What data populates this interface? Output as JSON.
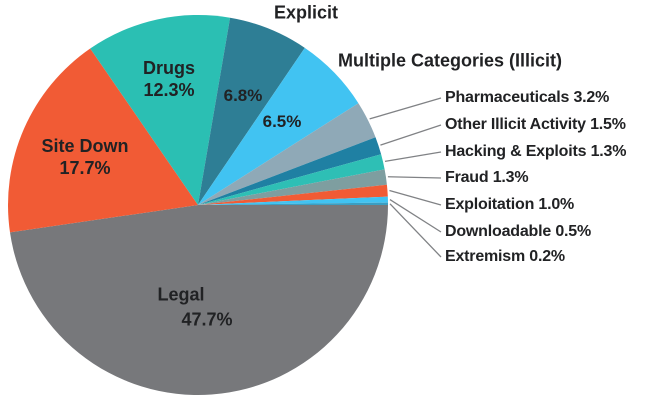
{
  "chart_data": {
    "type": "pie",
    "title": "",
    "direction": "clockwise",
    "start_angle_compass_deg": 90,
    "background": "#FFFFFF",
    "text_color": "#212224",
    "leader_line_color": "#808285",
    "slices": [
      {
        "name": "Legal",
        "value": 47.7,
        "pct_text": "47.7%",
        "color": "#77787B",
        "label_style": "inside"
      },
      {
        "name": "Site Down",
        "value": 17.7,
        "pct_text": "17.7%",
        "color": "#F15B35",
        "label_style": "inside"
      },
      {
        "name": "Drugs",
        "value": 12.3,
        "pct_text": "12.3%",
        "color": "#2BBFB3",
        "label_style": "inside"
      },
      {
        "name": "Explicit",
        "value": 6.8,
        "pct_text": "6.8%",
        "color": "#2E7E95",
        "label_style": "name-outside-pct-inside"
      },
      {
        "name": "Multiple Categories (Illicit)",
        "value": 6.5,
        "pct_text": "6.5%",
        "color": "#41C3F2",
        "label_style": "name-outside-pct-inside"
      },
      {
        "name": "Pharmaceuticals",
        "value": 3.2,
        "pct_text": "3.2%",
        "color": "#8FA9B7",
        "label_style": "callout"
      },
      {
        "name": "Other Illicit Activity",
        "value": 1.5,
        "pct_text": "1.5%",
        "color": "#1F80A3",
        "label_style": "callout"
      },
      {
        "name": "Hacking & Exploits",
        "value": 1.3,
        "pct_text": "1.3%",
        "color": "#2EBFB5",
        "label_style": "callout"
      },
      {
        "name": "Fraud",
        "value": 1.3,
        "pct_text": "1.3%",
        "color": "#7E9EA0",
        "label_style": "callout"
      },
      {
        "name": "Exploitation",
        "value": 1.0,
        "pct_text": "1.0%",
        "color": "#F15B35",
        "label_style": "callout"
      },
      {
        "name": "Downloadable",
        "value": 0.5,
        "pct_text": "0.5%",
        "color": "#41C3F2",
        "label_style": "callout"
      },
      {
        "name": "Extremism",
        "value": 0.2,
        "pct_text": "0.2%",
        "color": "#3A9EC2",
        "label_style": "callout"
      }
    ]
  }
}
